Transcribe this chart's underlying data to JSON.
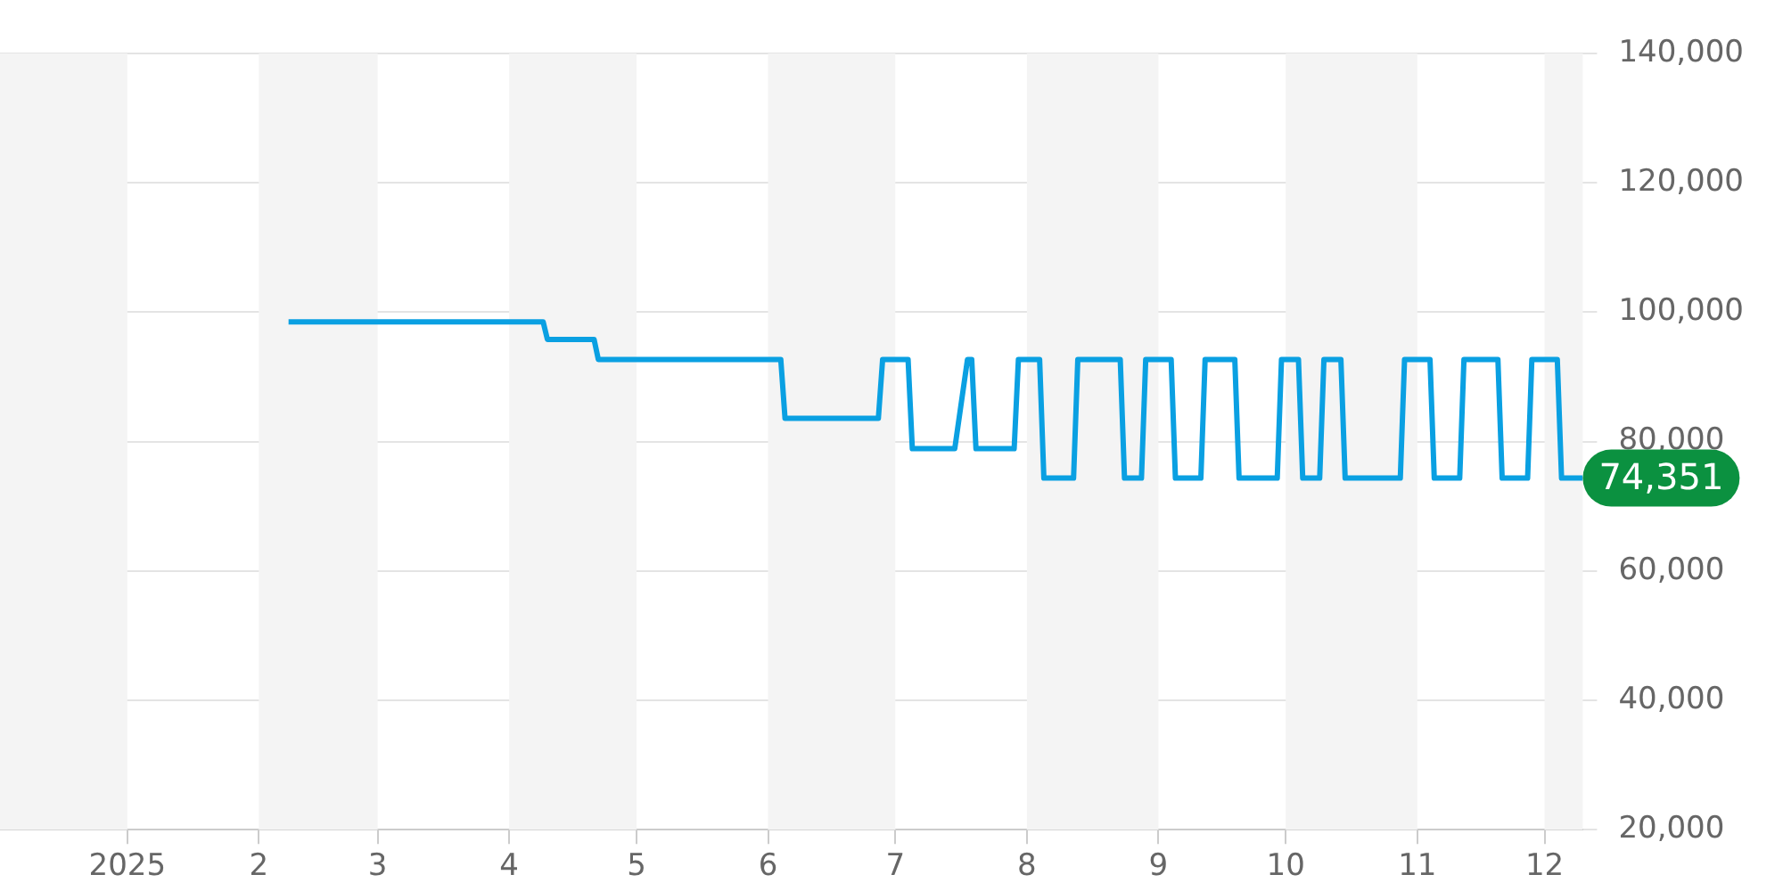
{
  "chart_data": {
    "type": "line",
    "x": [
      "2025-02-08",
      "2025-04-09",
      "2025-04-10",
      "2025-04-21",
      "2025-04-22",
      "2025-06-04",
      "2025-06-05",
      "2025-06-27",
      "2025-06-28",
      "2025-07-04",
      "2025-07-05",
      "2025-07-15",
      "2025-07-18",
      "2025-07-19",
      "2025-07-20",
      "2025-07-29",
      "2025-07-30",
      "2025-08-04",
      "2025-08-05",
      "2025-08-12",
      "2025-08-13",
      "2025-08-23",
      "2025-08-24",
      "2025-08-28",
      "2025-08-29",
      "2025-09-04",
      "2025-09-05",
      "2025-09-11",
      "2025-09-12",
      "2025-09-19",
      "2025-09-20",
      "2025-09-29",
      "2025-09-30",
      "2025-10-04",
      "2025-10-05",
      "2025-10-09",
      "2025-10-10",
      "2025-10-14",
      "2025-10-15",
      "2025-10-28",
      "2025-10-29",
      "2025-11-04",
      "2025-11-05",
      "2025-11-11",
      "2025-11-12",
      "2025-11-20",
      "2025-11-21",
      "2025-11-27",
      "2025-11-28",
      "2025-12-04",
      "2025-12-05",
      "2025-12-10"
    ],
    "series": [
      {
        "color": "#0aa0e2",
        "values": [
          98500,
          98500,
          95800,
          95800,
          92700,
          92700,
          83600,
          83600,
          92700,
          92700,
          78900,
          78900,
          92700,
          92700,
          78900,
          78900,
          92700,
          92700,
          74351,
          74351,
          92700,
          92700,
          74351,
          74351,
          92700,
          92700,
          74351,
          74351,
          92700,
          92700,
          74351,
          74351,
          92700,
          92700,
          74351,
          74351,
          92700,
          92700,
          74351,
          74351,
          92700,
          92700,
          74351,
          74351,
          92700,
          92700,
          74351,
          74351,
          92700,
          92700,
          74351,
          74351
        ]
      }
    ],
    "xlim": [
      "2024-12-02",
      "2025-12-10"
    ],
    "xticks": [
      {
        "value": "2025-01-01",
        "label": "2025"
      },
      {
        "value": "2025-02-01",
        "label": "2"
      },
      {
        "value": "2025-03-01",
        "label": "3"
      },
      {
        "value": "2025-04-01",
        "label": "4"
      },
      {
        "value": "2025-05-01",
        "label": "5"
      },
      {
        "value": "2025-06-01",
        "label": "6"
      },
      {
        "value": "2025-07-01",
        "label": "7"
      },
      {
        "value": "2025-08-01",
        "label": "8"
      },
      {
        "value": "2025-09-01",
        "label": "9"
      },
      {
        "value": "2025-10-01",
        "label": "10"
      },
      {
        "value": "2025-11-01",
        "label": "11"
      },
      {
        "value": "2025-12-01",
        "label": "12"
      }
    ],
    "ylim": [
      20000,
      140000
    ],
    "yticks": [
      {
        "value": 20000,
        "label": "20,000"
      },
      {
        "value": 40000,
        "label": "40,000"
      },
      {
        "value": 60000,
        "label": "60,000"
      },
      {
        "value": 80000,
        "label": "80,000"
      },
      {
        "value": 100000,
        "label": "100,000"
      },
      {
        "value": 120000,
        "label": "120,000"
      },
      {
        "value": 140000,
        "label": "140,000"
      }
    ],
    "bands": [
      {
        "axis": "x",
        "from": "2024-12-02",
        "to": "2025-01-01",
        "color": "#f4f4f4"
      },
      {
        "axis": "x",
        "from": "2025-02-01",
        "to": "2025-03-01",
        "color": "#f4f4f4"
      },
      {
        "axis": "x",
        "from": "2025-04-01",
        "to": "2025-05-01",
        "color": "#f4f4f4"
      },
      {
        "axis": "x",
        "from": "2025-06-01",
        "to": "2025-07-01",
        "color": "#f4f4f4"
      },
      {
        "axis": "x",
        "from": "2025-08-01",
        "to": "2025-09-01",
        "color": "#f4f4f4"
      },
      {
        "axis": "x",
        "from": "2025-10-01",
        "to": "2025-11-01",
        "color": "#f4f4f4"
      },
      {
        "axis": "x",
        "from": "2025-12-01",
        "to": "2025-12-10",
        "color": "#f4f4f4"
      }
    ],
    "annotations": [
      {
        "text": "74,351",
        "x": "2025-12-10",
        "y": 74351
      }
    ],
    "grid": "y",
    "legend": false,
    "marker": "none",
    "line_style": "solid"
  }
}
